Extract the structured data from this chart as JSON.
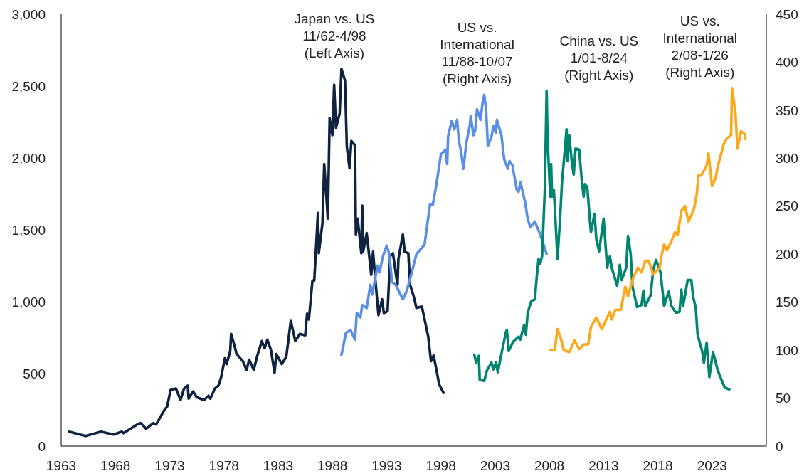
{
  "chart_data": {
    "type": "line",
    "xlim": [
      "1963",
      "2028-01"
    ],
    "xticks": [
      "1963",
      "1968",
      "1973",
      "1978",
      "1983",
      "1988",
      "1993",
      "1998",
      "2003",
      "2008",
      "2013",
      "2018",
      "2023"
    ],
    "ylim": [
      0,
      3000
    ],
    "yticks": [
      0,
      500,
      {
        "value": 1000,
        "label": "1,000"
      },
      {
        "value": 1500,
        "label": "1,500"
      },
      {
        "value": 2000,
        "label": "2,000"
      },
      {
        "value": 2500,
        "label": "2,500"
      },
      {
        "value": 3000,
        "label": "3,000"
      }
    ],
    "y2lim": [
      0,
      450
    ],
    "y2ticks": [
      0,
      50,
      100,
      150,
      200,
      250,
      300,
      350,
      400,
      450
    ],
    "grid": false,
    "legend": false,
    "line_style": "solid",
    "marker": "none",
    "series": [
      {
        "name": "Japan vs. US\n11/62-4/98\n(Left Axis)",
        "color": "#0f2240",
        "x": [
          "1963-10",
          "1965-04",
          "1966-09",
          "1967-11",
          "1968-08",
          "1968-10",
          "1970-01",
          "1970-05",
          "1970-11",
          "1971-07",
          "1971-10",
          "1972-08",
          "1972-10",
          "1973-02",
          "1973-08",
          "1974-01",
          "1974-05",
          "1974-09",
          "1974-10",
          "1975-03",
          "1975-07",
          "1976-03",
          "1976-08",
          "1976-10",
          "1977-03",
          "1977-07",
          "1977-10",
          "1978-02",
          "1978-04",
          "1978-08",
          "1978-09",
          "1979-01",
          "1979-03",
          "1979-10",
          "1980-02",
          "1980-05",
          "1980-10",
          "1981-02",
          "1981-07",
          "1981-10",
          "1982-01",
          "1982-05",
          "1982-09",
          "1982-11",
          "1983-05",
          "1983-10",
          "1984-03",
          "1984-08",
          "1985-01",
          "1985-07",
          "1985-09",
          "1985-11",
          "1986-03",
          "1986-05",
          "1986-09",
          "1986-10",
          "1987-02",
          "1987-04",
          "1987-08",
          "1987-10",
          "1988-01",
          "1988-03",
          "1988-05",
          "1988-09",
          "1988-11",
          "1989-03",
          "1989-05",
          "1989-08",
          "1989-10",
          "1990-02",
          "1990-03",
          "1990-05",
          "1990-09",
          "1990-10",
          "1990-11",
          "1991-03",
          "1991-08",
          "1991-10",
          "1992-01",
          "1992-04",
          "1992-08",
          "1992-10",
          "1993-02",
          "1993-05",
          "1993-08",
          "1994-01",
          "1994-02",
          "1994-07",
          "1994-09",
          "1995-01",
          "1995-03",
          "1995-07",
          "1995-10",
          "1996-04",
          "1996-11",
          "1997-02",
          "1997-05",
          "1997-09",
          "1997-11",
          "1998-04"
        ],
        "values": [
          100,
          70,
          100,
          80,
          100,
          90,
          150,
          160,
          120,
          160,
          150,
          260,
          270,
          390,
          400,
          320,
          400,
          420,
          330,
          380,
          340,
          320,
          350,
          330,
          400,
          420,
          480,
          610,
          570,
          660,
          780,
          690,
          640,
          590,
          530,
          600,
          530,
          630,
          730,
          680,
          740,
          670,
          510,
          640,
          570,
          620,
          870,
          730,
          780,
          770,
          920,
          880,
          1150,
          1150,
          1620,
          1340,
          1550,
          1960,
          1580,
          2280,
          2160,
          2510,
          2210,
          2310,
          2620,
          2540,
          2080,
          1930,
          2120,
          2090,
          1470,
          1580,
          1340,
          1670,
          1350,
          1480,
          1190,
          1350,
          1120,
          910,
          1020,
          920,
          940,
          1320,
          1340,
          1120,
          1300,
          1470,
          1350,
          1340,
          1120,
          1040,
          960,
          970,
          760,
          590,
          630,
          500,
          430,
          370
        ]
      },
      {
        "name": "US vs.\nInternational\n11/88-10/07\n(Right Axis)",
        "color": "#5b8fe6",
        "axis": "y2",
        "x": [
          "1988-11",
          "1989-04",
          "1989-09",
          "1990-02",
          "1990-04",
          "1990-08",
          "1990-10",
          "1991-03",
          "1991-07",
          "1991-09",
          "1992-03",
          "1992-05",
          "1992-09",
          "1993-01",
          "1993-04",
          "1993-07",
          "1993-11",
          "1994-07",
          "1994-11",
          "1995-04",
          "1995-10",
          "1996-07",
          "1997-01",
          "1997-04",
          "1997-08",
          "1998-01",
          "1998-06",
          "1998-08",
          "1998-09",
          "1999-01",
          "1999-04",
          "1999-07",
          "1999-09",
          "1999-11",
          "2000-02",
          "2000-05",
          "2000-09",
          "2000-10",
          "2001-01",
          "2001-03",
          "2001-05",
          "2001-09",
          "2001-11",
          "2002-01",
          "2002-03",
          "2002-05",
          "2002-09",
          "2002-11",
          "2003-02",
          "2003-03",
          "2003-08",
          "2003-11",
          "2004-03",
          "2004-05",
          "2004-08",
          "2005-01",
          "2005-03",
          "2005-05",
          "2005-10",
          "2006-01",
          "2006-04",
          "2006-09",
          "2007-01",
          "2007-05",
          "2007-10"
        ],
        "values": [
          95,
          118,
          121,
          111,
          139,
          134,
          147,
          144,
          168,
          158,
          188,
          181,
          198,
          209,
          200,
          171,
          168,
          153,
          161,
          178,
          200,
          210,
          252,
          251,
          272,
          304,
          309,
          294,
          323,
          339,
          330,
          340,
          317,
          309,
          289,
          315,
          334,
          344,
          324,
          329,
          351,
          340,
          357,
          366,
          351,
          313,
          322,
          334,
          326,
          340,
          324,
          299,
          289,
          297,
          293,
          267,
          265,
          275,
          255,
          237,
          228,
          234,
          225,
          215,
          200
        ]
      },
      {
        "name": "China vs. US\n1/01-8/24\n(Right Axis)",
        "color": "#008670",
        "axis": "y2",
        "x": [
          "2001-02",
          "2001-04",
          "2001-07",
          "2001-08",
          "2002-01",
          "2002-04",
          "2002-09",
          "2002-11",
          "2003-02",
          "2003-04",
          "2003-08",
          "2004-01",
          "2004-02",
          "2004-04",
          "2004-09",
          "2005-03",
          "2005-05",
          "2005-09",
          "2005-11",
          "2006-01",
          "2006-05",
          "2006-09",
          "2006-11",
          "2007-01",
          "2007-03",
          "2007-05",
          "2007-08",
          "2007-09",
          "2007-10",
          "2007-11",
          "2008-02",
          "2008-03",
          "2008-04",
          "2008-06",
          "2008-10",
          "2009-01",
          "2009-03",
          "2009-06",
          "2009-08",
          "2009-09",
          "2009-11",
          "2010-02",
          "2010-04",
          "2010-06",
          "2010-10",
          "2011-01",
          "2011-03",
          "2011-04",
          "2011-07",
          "2011-10",
          "2011-11",
          "2012-03",
          "2012-05",
          "2012-08",
          "2013-01",
          "2013-05",
          "2013-08",
          "2013-10",
          "2014-04",
          "2014-07",
          "2014-09",
          "2015-02",
          "2015-04",
          "2015-07",
          "2015-09",
          "2016-02",
          "2016-07",
          "2016-09",
          "2016-11",
          "2017-05",
          "2017-08",
          "2017-11",
          "2018-04",
          "2018-08",
          "2019-01",
          "2019-04",
          "2019-09",
          "2020-01",
          "2020-03",
          "2020-05",
          "2020-10",
          "2021-02",
          "2021-04",
          "2021-07",
          "2021-09",
          "2022-02",
          "2022-04",
          "2022-07",
          "2022-10",
          "2023-02",
          "2023-07",
          "2023-11",
          "2024-03",
          "2024-08"
        ],
        "values": [
          95,
          87,
          94,
          69,
          68,
          79,
          87,
          80,
          87,
          77,
          96,
          119,
          121,
          99,
          109,
          114,
          111,
          126,
          116,
          139,
          151,
          153,
          176,
          195,
          190,
          198,
          267,
          319,
          370,
          319,
          260,
          294,
          260,
          267,
          195,
          240,
          275,
          307,
          330,
          297,
          324,
          294,
          283,
          310,
          309,
          275,
          260,
          273,
          270,
          233,
          223,
          242,
          215,
          203,
          237,
          186,
          198,
          186,
          167,
          189,
          173,
          186,
          219,
          200,
          166,
          145,
          147,
          162,
          146,
          157,
          184,
          194,
          181,
          146,
          161,
          146,
          139,
          140,
          163,
          146,
          173,
          173,
          156,
          144,
          116,
          99,
          87,
          108,
          72,
          98,
          80,
          70,
          61,
          59
        ]
      },
      {
        "name": "US vs.\nInternational\n2/08-1/26\n(Right Axis)",
        "color": "#fba81b",
        "axis": "y2",
        "x": [
          "2008-02",
          "2008-07",
          "2008-10",
          "2009-02",
          "2009-05",
          "2009-11",
          "2010-05",
          "2010-10",
          "2011-03",
          "2011-08",
          "2011-11",
          "2012-05",
          "2012-11",
          "2013-08",
          "2013-10",
          "2014-02",
          "2014-08",
          "2015-01",
          "2015-04",
          "2015-10",
          "2016-03",
          "2016-07",
          "2016-11",
          "2017-03",
          "2017-08",
          "2018-03",
          "2018-05",
          "2018-08",
          "2018-11",
          "2019-04",
          "2019-08",
          "2019-11",
          "2020-03",
          "2020-07",
          "2020-11",
          "2021-05",
          "2021-08",
          "2021-10",
          "2022-01",
          "2022-07",
          "2022-09",
          "2023-01",
          "2023-05",
          "2023-08",
          "2024-02",
          "2024-05",
          "2024-10",
          "2024-11",
          "2025-03",
          "2025-05",
          "2025-09",
          "2026-01",
          "2026-02"
        ],
        "values": [
          100,
          100,
          122,
          111,
          100,
          98,
          110,
          101,
          106,
          106,
          124,
          134,
          122,
          140,
          132,
          142,
          142,
          166,
          156,
          176,
          186,
          181,
          193,
          193,
          179,
          186,
          198,
          210,
          204,
          213,
          223,
          220,
          245,
          250,
          234,
          247,
          262,
          282,
          282,
          292,
          305,
          271,
          280,
          294,
          315,
          320,
          324,
          373,
          346,
          310,
          328,
          325,
          320
        ]
      }
    ]
  }
}
